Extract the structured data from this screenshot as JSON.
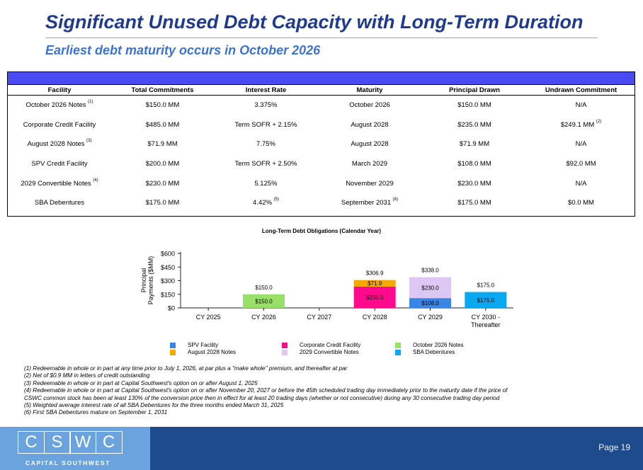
{
  "header": {
    "title": "Significant Unused Debt Capacity with Long-Term Duration",
    "subtitle": "Earliest debt maturity occurs in October 2026"
  },
  "table": {
    "columns": [
      "Facility",
      "Total Commitments",
      "Interest Rate",
      "Maturity",
      "Principal Drawn",
      "Undrawn Commitment"
    ],
    "rows": [
      {
        "facility": "October 2026 Notes",
        "facility_note": "(1)",
        "total": "$150.0 MM",
        "rate": "3.375%",
        "rate_note": "",
        "maturity": "October 2026",
        "maturity_note": "",
        "drawn": "$150.0 MM",
        "undrawn": "N/A",
        "undrawn_note": ""
      },
      {
        "facility": "Corporate Credit Facility",
        "facility_note": "",
        "total": "$485.0 MM",
        "rate": "Term SOFR + 2.15%",
        "rate_note": "",
        "maturity": "August 2028",
        "maturity_note": "",
        "drawn": "$235.0 MM",
        "undrawn": "$249.1 MM",
        "undrawn_note": "(2)"
      },
      {
        "facility": "August 2028 Notes",
        "facility_note": "(3)",
        "total": "$71.9 MM",
        "rate": "7.75%",
        "rate_note": "",
        "maturity": "August 2028",
        "maturity_note": "",
        "drawn": "$71.9 MM",
        "undrawn": "N/A",
        "undrawn_note": ""
      },
      {
        "facility": "SPV Credit Facility",
        "facility_note": "",
        "total": "$200.0 MM",
        "rate": "Term SOFR + 2.50%",
        "rate_note": "",
        "maturity": "March 2029",
        "maturity_note": "",
        "drawn": "$108.0 MM",
        "undrawn": "$92.0 MM",
        "undrawn_note": ""
      },
      {
        "facility": "2029 Convertible Notes",
        "facility_note": "(4)",
        "total": "$230.0 MM",
        "rate": "5.125%",
        "rate_note": "",
        "maturity": "November 2029",
        "maturity_note": "",
        "drawn": "$230.0 MM",
        "undrawn": "N/A",
        "undrawn_note": ""
      },
      {
        "facility": "SBA Debentures",
        "facility_note": "",
        "total": "$175.0 MM",
        "rate": "4.42%",
        "rate_note": "(5)",
        "maturity": "September 2031",
        "maturity_note": "(6)",
        "drawn": "$175.0 MM",
        "undrawn": "$0.0 MM",
        "undrawn_note": ""
      }
    ]
  },
  "chart_data": {
    "type": "bar",
    "stacked": true,
    "title": "Long-Term Debt Obligations (Calendar Year)",
    "ylabel": "Principal Payments ($MM)",
    "ylim": [
      0,
      600
    ],
    "yticks": [
      "$600",
      "$450",
      "$300",
      "$150",
      "$0"
    ],
    "categories": [
      "CY 2025",
      "CY 2026",
      "CY 2027",
      "CY 2028",
      "CY 2029",
      "CY 2030 - Thereafter"
    ],
    "series": [
      {
        "name": "SPV Facility",
        "color": "#3a86e6",
        "values": [
          0,
          0,
          0,
          0,
          108.0,
          0
        ],
        "labels": [
          "",
          "",
          "",
          "",
          "$108.0",
          ""
        ]
      },
      {
        "name": "Corporate Credit Facility",
        "color": "#ff0a8c",
        "values": [
          0,
          0,
          0,
          235.0,
          0,
          0
        ],
        "labels": [
          "",
          "",
          "",
          "$235.0",
          "",
          ""
        ]
      },
      {
        "name": "October 2026 Notes",
        "color": "#99e06a",
        "values": [
          0,
          150.0,
          0,
          0,
          0,
          0
        ],
        "labels": [
          "",
          "$150.0",
          "",
          "",
          "",
          ""
        ]
      },
      {
        "name": "August 2028 Notes",
        "color": "#f5a800",
        "values": [
          0,
          0,
          0,
          71.9,
          0,
          0
        ],
        "labels": [
          "",
          "",
          "",
          "$71.9",
          "",
          ""
        ]
      },
      {
        "name": "2029 Convertible Notes",
        "color": "#dcc8f2",
        "values": [
          0,
          0,
          0,
          0,
          230.0,
          0
        ],
        "labels": [
          "",
          "",
          "",
          "",
          "$230.0",
          ""
        ]
      },
      {
        "name": "SBA Debentures",
        "color": "#0aa8f0",
        "values": [
          0,
          0,
          0,
          0,
          0,
          175.0
        ],
        "labels": [
          "",
          "",
          "",
          "",
          "",
          "$175.0"
        ]
      }
    ],
    "totals": [
      "",
      "$150.0",
      "",
      "$306.9",
      "$338.0",
      "$175.0"
    ]
  },
  "footnotes": [
    "(1) Redeemable in whole or in part at any time prior to July 1, 2026, at par plus a \"make whole\" premium, and thereafter at par",
    "(2) Net of $0.9 MM in letters of credit outstanding",
    "(3) Redeemable in whole or in part at Capital Southwest's option on or after August 1, 2025",
    "(4) Redeemable in whole or in part at Capital Southwest's option on or after November 20, 2027 or before the 45th scheduled trading day immediately prior to the maturity date if the price of",
    "CSWC common stock has been at least 130% of the conversion price then in effect for at least 20 trading days (whether or not consecutive) during any 30 consecutive trading day period",
    "(5) Weighted average interest rate of all SBA Debentures for the three months ended March 31, 2025",
    "(6) First SBA Debentures mature on September 1, 2031"
  ],
  "footer": {
    "logo_letters": [
      "C",
      "S",
      "W",
      "C"
    ],
    "logo_sub": "CAPITAL SOUTHWEST",
    "page": "Page 19"
  }
}
